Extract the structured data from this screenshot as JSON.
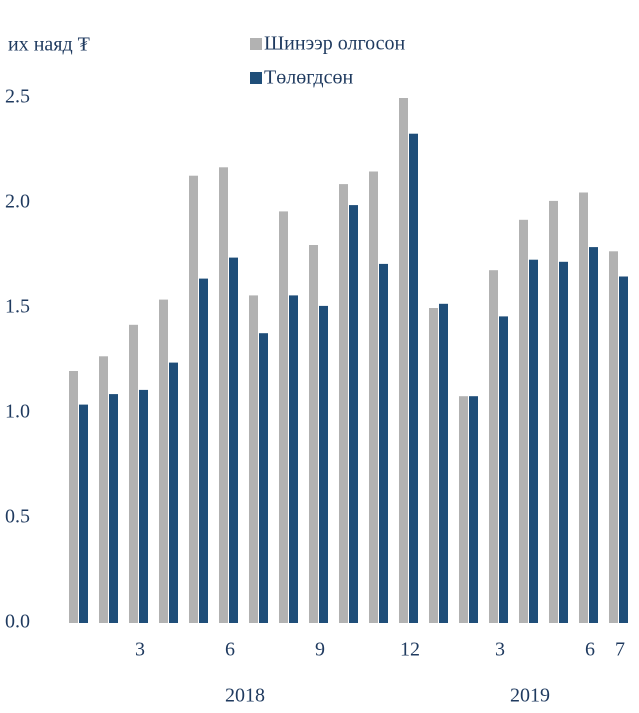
{
  "chart_data": {
    "type": "bar",
    "y_axis_label": "их наяд ₮",
    "categories": [
      null,
      null,
      "3",
      null,
      null,
      "6",
      null,
      null,
      "9",
      null,
      null,
      "12",
      null,
      null,
      "3",
      null,
      null,
      "6",
      "7"
    ],
    "x_groups": [
      "2018",
      "2019"
    ],
    "series": [
      {
        "name": "Шинээр олгосон",
        "color": "#b2b2b2",
        "values": [
          1.2,
          1.27,
          1.42,
          1.54,
          2.13,
          2.17,
          1.56,
          1.96,
          1.8,
          2.09,
          2.15,
          2.5,
          1.5,
          1.08,
          1.68,
          1.92,
          2.01,
          2.05,
          1.77
        ]
      },
      {
        "name": "Төлөгдсөн",
        "color": "#1f4e79",
        "values": [
          1.04,
          1.09,
          1.11,
          1.24,
          1.64,
          1.74,
          1.38,
          1.56,
          1.51,
          1.99,
          1.71,
          2.33,
          1.52,
          1.08,
          1.46,
          1.73,
          1.72,
          1.79,
          1.65
        ]
      }
    ],
    "ylim": [
      0,
      2.5
    ],
    "yticks": [
      {
        "value": 0,
        "label": "0.0"
      },
      0.5,
      {
        "value": 1,
        "label": "1.0"
      },
      1.5,
      {
        "value": 2,
        "label": "2.0"
      },
      2.5
    ],
    "grid": false
  }
}
